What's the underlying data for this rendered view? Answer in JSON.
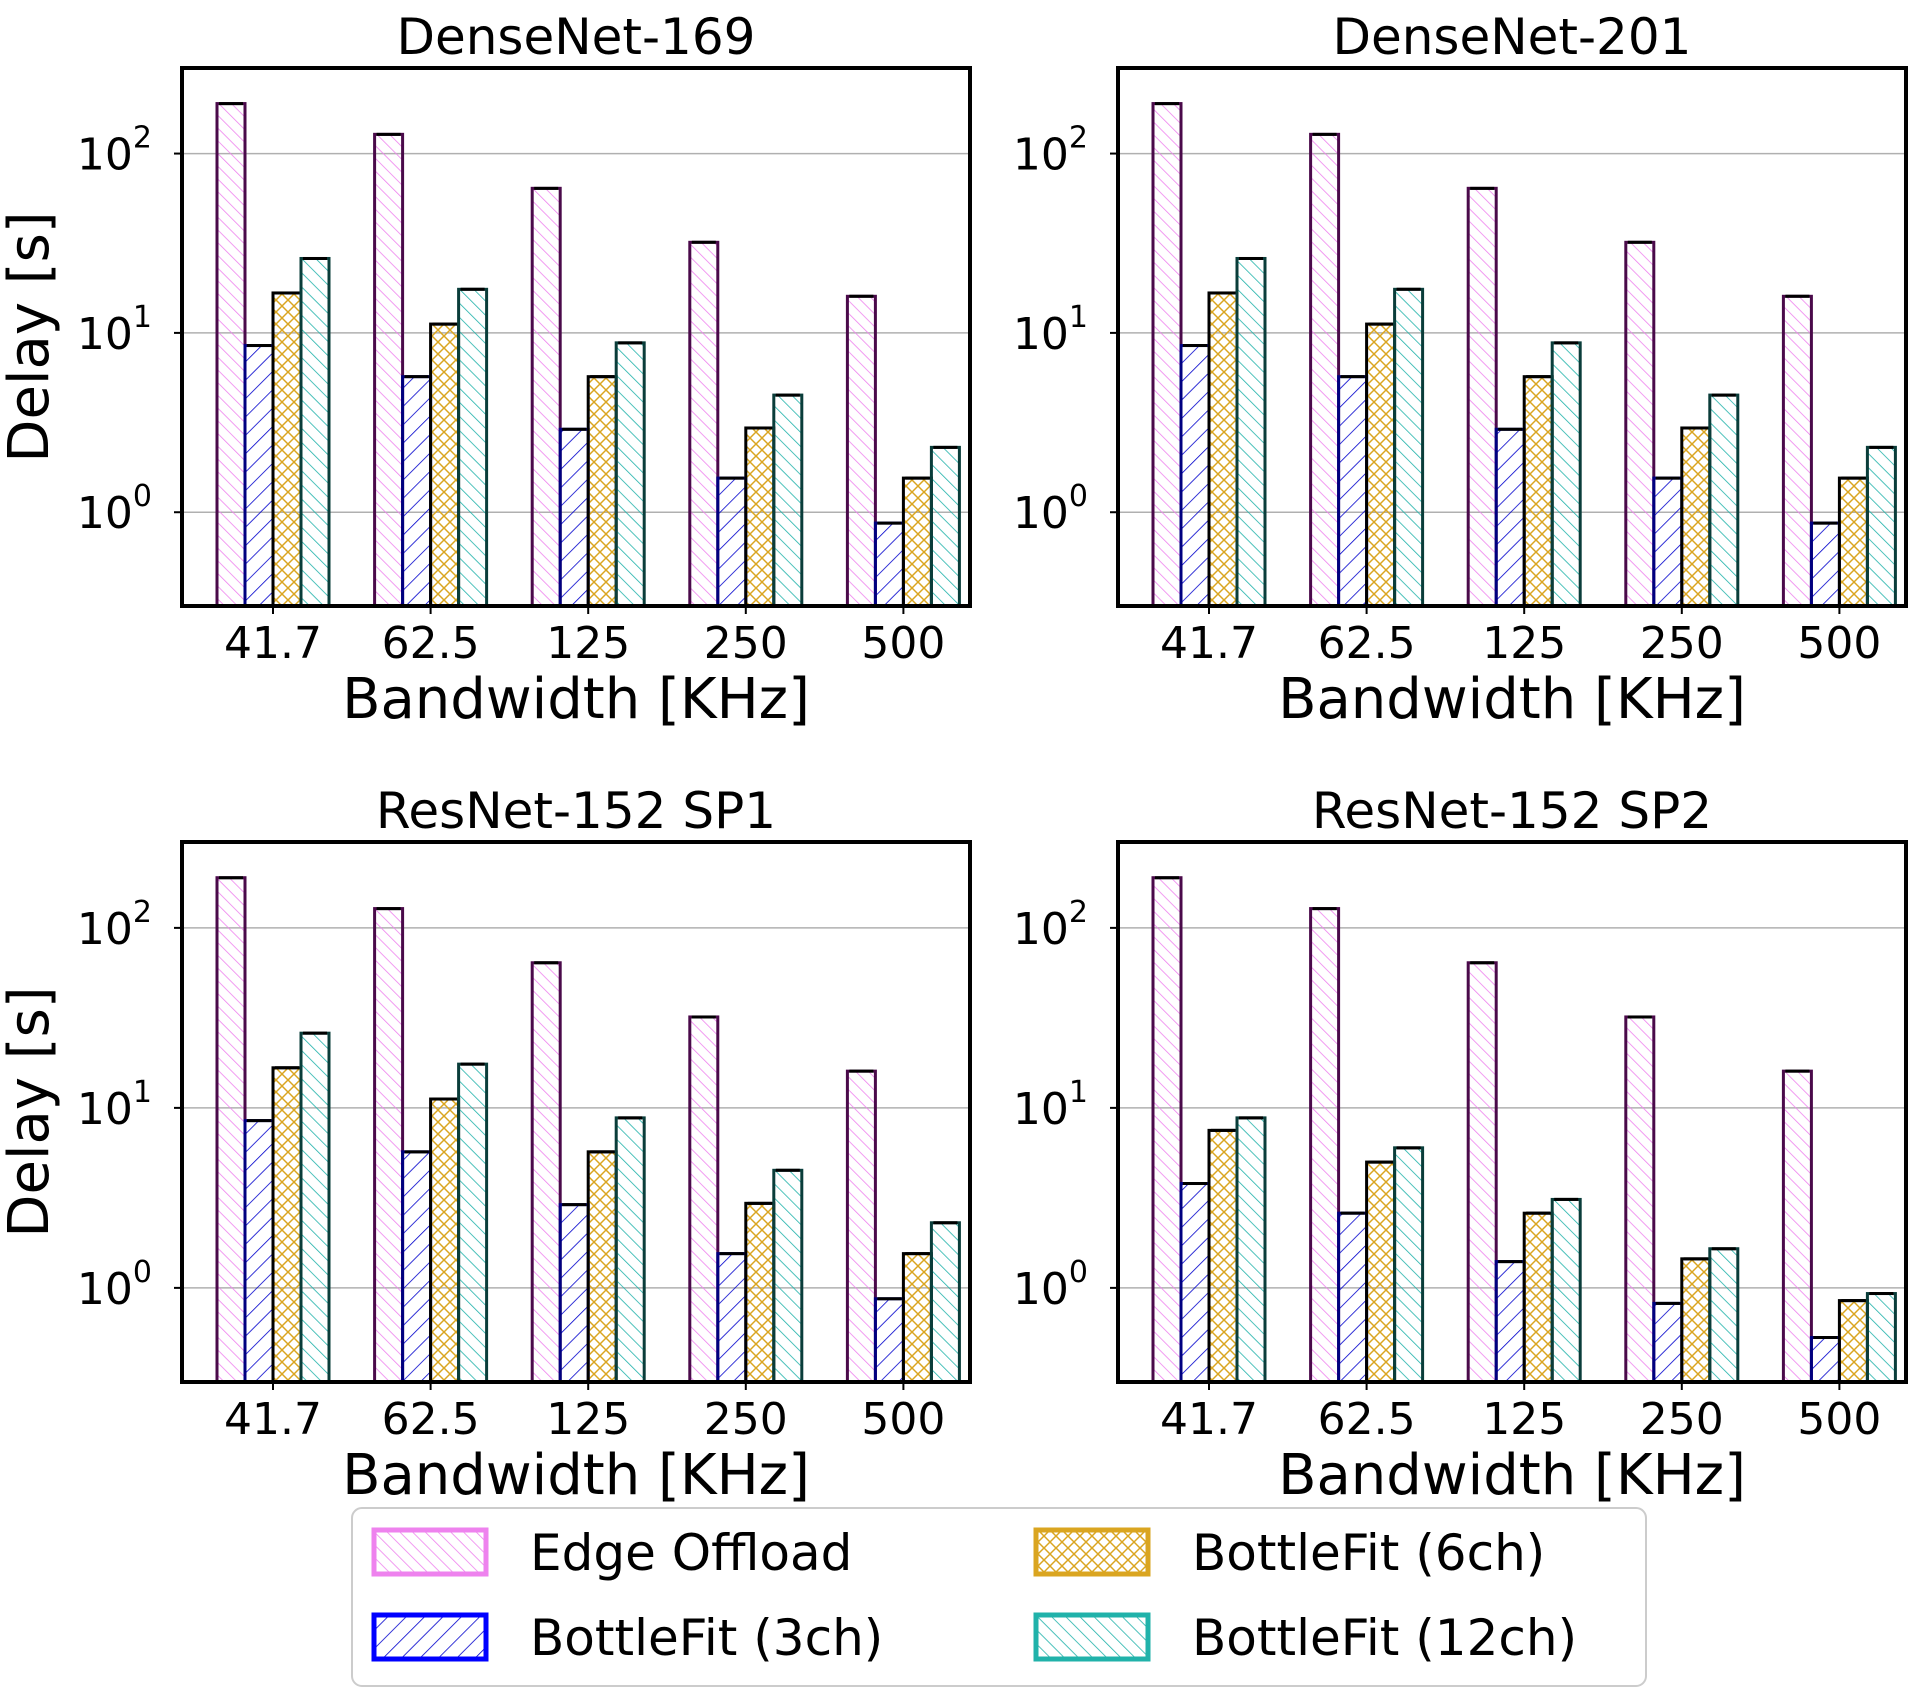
{
  "chart_data": [
    {
      "type": "bar",
      "title": "DenseNet-169",
      "xlabel": "Bandwidth [KHz]",
      "ylabel": "Delay [s]",
      "yscale": "log",
      "ylim": [
        0.3,
        300
      ],
      "categories": [
        "41.7",
        "62.5",
        "125",
        "250",
        "500"
      ],
      "series": [
        {
          "name": "Edge Offload",
          "values": [
            190,
            128,
            64,
            32,
            16
          ]
        },
        {
          "name": "BottleFit (3ch)",
          "values": [
            8.5,
            5.7,
            2.9,
            1.55,
            0.87
          ]
        },
        {
          "name": "BottleFit (6ch)",
          "values": [
            16.7,
            11.2,
            5.7,
            2.95,
            1.55
          ]
        },
        {
          "name": "BottleFit (12ch)",
          "values": [
            26,
            17.5,
            8.8,
            4.5,
            2.3
          ]
        }
      ]
    },
    {
      "type": "bar",
      "title": "DenseNet-201",
      "xlabel": "Bandwidth [KHz]",
      "ylabel": "",
      "yscale": "log",
      "ylim": [
        0.3,
        300
      ],
      "categories": [
        "41.7",
        "62.5",
        "125",
        "250",
        "500"
      ],
      "series": [
        {
          "name": "Edge Offload",
          "values": [
            190,
            128,
            64,
            32,
            16
          ]
        },
        {
          "name": "BottleFit (3ch)",
          "values": [
            8.5,
            5.7,
            2.9,
            1.55,
            0.87
          ]
        },
        {
          "name": "BottleFit (6ch)",
          "values": [
            16.7,
            11.2,
            5.7,
            2.95,
            1.55
          ]
        },
        {
          "name": "BottleFit (12ch)",
          "values": [
            26,
            17.5,
            8.8,
            4.5,
            2.3
          ]
        }
      ]
    },
    {
      "type": "bar",
      "title": "ResNet-152 SP1",
      "xlabel": "Bandwidth [KHz]",
      "ylabel": "Delay [s]",
      "yscale": "log",
      "ylim": [
        0.3,
        300
      ],
      "categories": [
        "41.7",
        "62.5",
        "125",
        "250",
        "500"
      ],
      "series": [
        {
          "name": "Edge Offload",
          "values": [
            190,
            128,
            64,
            32,
            16
          ]
        },
        {
          "name": "BottleFit (3ch)",
          "values": [
            8.5,
            5.7,
            2.9,
            1.55,
            0.87
          ]
        },
        {
          "name": "BottleFit (6ch)",
          "values": [
            16.7,
            11.2,
            5.7,
            2.95,
            1.55
          ]
        },
        {
          "name": "BottleFit (12ch)",
          "values": [
            26,
            17.5,
            8.8,
            4.5,
            2.3
          ]
        }
      ]
    },
    {
      "type": "bar",
      "title": "ResNet-152 SP2",
      "xlabel": "Bandwidth [KHz]",
      "ylabel": "",
      "yscale": "log",
      "ylim": [
        0.3,
        300
      ],
      "categories": [
        "41.7",
        "62.5",
        "125",
        "250",
        "500"
      ],
      "series": [
        {
          "name": "Edge Offload",
          "values": [
            190,
            128,
            64,
            32,
            16
          ]
        },
        {
          "name": "BottleFit (3ch)",
          "values": [
            3.8,
            2.6,
            1.4,
            0.82,
            0.53
          ]
        },
        {
          "name": "BottleFit (6ch)",
          "values": [
            7.5,
            5.0,
            2.6,
            1.45,
            0.85
          ]
        },
        {
          "name": "BottleFit (12ch)",
          "values": [
            8.8,
            6.0,
            3.1,
            1.65,
            0.93
          ]
        }
      ]
    }
  ],
  "legend": {
    "placement": "bottom-center",
    "entries": [
      {
        "label": "Edge Offload",
        "color": "#ee82ee",
        "pattern": "diag-dense"
      },
      {
        "label": "BottleFit (3ch)",
        "color": "#0000ff",
        "pattern": "diag-fwd"
      },
      {
        "label": "BottleFit (6ch)",
        "color": "#daa520",
        "pattern": "cross"
      },
      {
        "label": "BottleFit (12ch)",
        "color": "#20b2aa",
        "pattern": "diag-back"
      }
    ]
  },
  "y_ticks": {
    "values": [
      1,
      10,
      100
    ],
    "base": "10",
    "exponents": [
      "0",
      "1",
      "2"
    ]
  }
}
